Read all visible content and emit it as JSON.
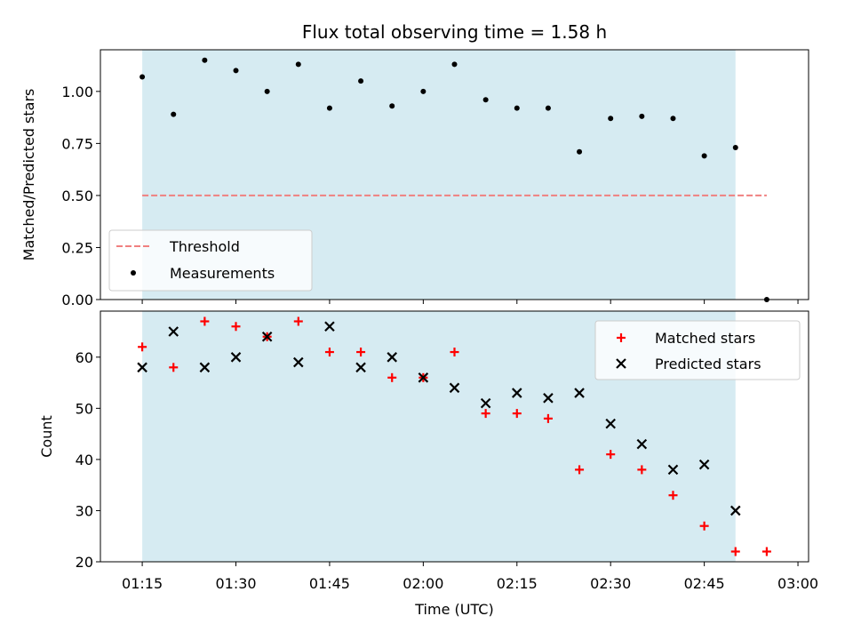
{
  "chart_data": [
    {
      "type": "scatter",
      "title": "Flux total observing time = 1.58 h",
      "ylabel": "Matched/Predicted stars",
      "xlabel": "",
      "ylim": [
        0,
        1.2
      ],
      "yticks": [
        "0.00",
        "0.25",
        "0.50",
        "0.75",
        "1.00"
      ],
      "shaded_region": {
        "x_start": "01:15",
        "x_end": "02:50",
        "color": "#add8e6"
      },
      "threshold": {
        "name": "Threshold",
        "value": 0.5,
        "x_start": "01:15",
        "x_end": "02:55",
        "color": "#f08080"
      },
      "series": [
        {
          "name": "Measurements",
          "marker": "dot",
          "color": "#000000",
          "x": [
            "01:15",
            "01:20",
            "01:25",
            "01:30",
            "01:35",
            "01:40",
            "01:45",
            "01:50",
            "01:55",
            "02:00",
            "02:05",
            "02:10",
            "02:15",
            "02:20",
            "02:25",
            "02:30",
            "02:35",
            "02:40",
            "02:45",
            "02:50",
            "02:55"
          ],
          "values": [
            1.07,
            0.89,
            1.15,
            1.1,
            1.0,
            1.13,
            0.92,
            1.05,
            0.93,
            1.0,
            1.13,
            0.96,
            0.92,
            0.92,
            0.71,
            0.87,
            0.88,
            0.87,
            0.69,
            0.73,
            0.0
          ]
        }
      ],
      "legend": {
        "placement": "lower-left",
        "entries": [
          "Threshold",
          "Measurements"
        ]
      }
    },
    {
      "type": "scatter",
      "title": "",
      "ylabel": "Count",
      "xlabel": "Time (UTC)",
      "ylim": [
        20,
        69
      ],
      "yticks": [
        "20",
        "30",
        "40",
        "50",
        "60"
      ],
      "xticks": [
        "01:15",
        "01:30",
        "01:45",
        "02:00",
        "02:15",
        "02:30",
        "02:45",
        "03:00"
      ],
      "shaded_region": {
        "x_start": "01:15",
        "x_end": "02:50",
        "color": "#add8e6"
      },
      "series": [
        {
          "name": "Matched stars",
          "marker": "plus",
          "color": "#ff0000",
          "x": [
            "01:15",
            "01:20",
            "01:25",
            "01:30",
            "01:35",
            "01:40",
            "01:45",
            "01:50",
            "01:55",
            "02:00",
            "02:05",
            "02:10",
            "02:15",
            "02:20",
            "02:25",
            "02:30",
            "02:35",
            "02:40",
            "02:45",
            "02:50",
            "02:55"
          ],
          "values": [
            62,
            58,
            67,
            66,
            64,
            67,
            61,
            61,
            56,
            56,
            61,
            49,
            49,
            48,
            38,
            41,
            38,
            33,
            27,
            22,
            22
          ]
        },
        {
          "name": "Predicted stars",
          "marker": "x",
          "color": "#000000",
          "x": [
            "01:15",
            "01:20",
            "01:25",
            "01:30",
            "01:35",
            "01:40",
            "01:45",
            "01:50",
            "01:55",
            "02:00",
            "02:05",
            "02:10",
            "02:15",
            "02:20",
            "02:25",
            "02:30",
            "02:35",
            "02:40",
            "02:45",
            "02:50"
          ],
          "values": [
            58,
            65,
            58,
            60,
            64,
            59,
            66,
            58,
            60,
            56,
            54,
            51,
            53,
            52,
            53,
            47,
            43,
            38,
            39,
            30
          ]
        }
      ],
      "legend": {
        "placement": "upper-right",
        "entries": [
          "Matched stars",
          "Predicted stars"
        ]
      }
    }
  ]
}
